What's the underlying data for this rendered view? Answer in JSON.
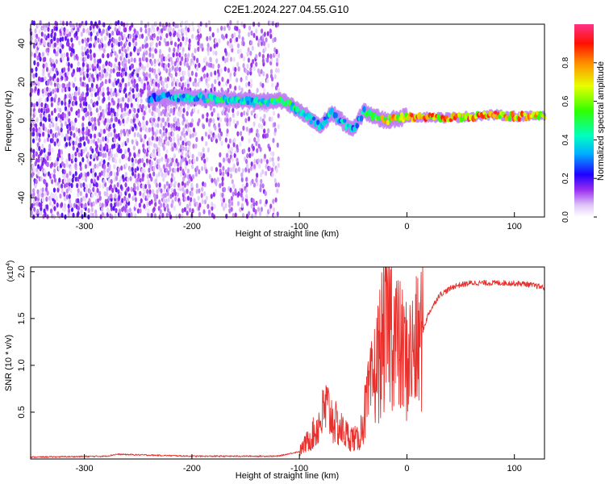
{
  "title": "C2E1.2024.227.04.55.G10",
  "chart_data": [
    {
      "type": "heatmap",
      "xlabel": "Height of straight line (km)",
      "ylabel": "Frequency (Hz)",
      "xlim": [
        -350,
        128
      ],
      "ylim": [
        -50,
        50
      ],
      "x_ticks": [
        -300,
        -200,
        -100,
        0,
        100
      ],
      "x_tick_labels": [
        "-300",
        "-200",
        "-100",
        "0",
        "100"
      ],
      "y_ticks": [
        -40,
        -20,
        0,
        20,
        40
      ],
      "y_tick_labels": [
        "-40",
        "-20",
        "0",
        "20",
        "40"
      ],
      "colorbar": {
        "label": "Normalized spectral amplitude",
        "range": [
          0,
          1
        ],
        "ticks": [
          0.0,
          0.2,
          0.4,
          0.6,
          0.8
        ],
        "tick_labels": [
          "0.0",
          "0.2",
          "0.4",
          "0.6",
          "0.8"
        ],
        "colors": [
          "#ffffff",
          "#d6b8f5",
          "#7a00e8",
          "#0000ff",
          "#00c8ff",
          "#00ffa0",
          "#00ff00",
          "#ffff00",
          "#ff8000",
          "#ff0000",
          "#ff3380"
        ]
      },
      "ridge": [
        {
          "x": -240,
          "f": 12,
          "a": 0.35
        },
        {
          "x": -200,
          "f": 12,
          "a": 0.45
        },
        {
          "x": -170,
          "f": 11,
          "a": 0.5
        },
        {
          "x": -140,
          "f": 10,
          "a": 0.45
        },
        {
          "x": -115,
          "f": 10,
          "a": 0.6
        },
        {
          "x": -100,
          "f": 5,
          "a": 0.45
        },
        {
          "x": -80,
          "f": -3,
          "a": 0.4
        },
        {
          "x": -70,
          "f": 4,
          "a": 0.45
        },
        {
          "x": -50,
          "f": -5,
          "a": 0.4
        },
        {
          "x": -40,
          "f": 5,
          "a": 0.5
        },
        {
          "x": -30,
          "f": 2,
          "a": 0.6
        },
        {
          "x": -20,
          "f": 0,
          "a": 0.8
        },
        {
          "x": 0,
          "f": 2,
          "a": 0.85
        },
        {
          "x": 40,
          "f": 1.5,
          "a": 0.9
        },
        {
          "x": 80,
          "f": 3,
          "a": 0.9
        },
        {
          "x": 110,
          "f": 2,
          "a": 0.85
        },
        {
          "x": 128,
          "f": 3,
          "a": 0.8
        }
      ],
      "noise_region_x": [
        -350,
        -120
      ]
    },
    {
      "type": "line",
      "xlabel": "Height of straight line (km)",
      "ylabel": "SNR (10 * v/v)",
      "y_multiplier": "(x10",
      "y_multiplier_exp": "4",
      "y_multiplier_close": ")",
      "xlim": [
        -350,
        128
      ],
      "ylim": [
        0,
        2.05
      ],
      "x_ticks": [
        -300,
        -200,
        -100,
        0,
        100
      ],
      "x_tick_labels": [
        "-300",
        "-200",
        "-100",
        "0",
        "100"
      ],
      "y_ticks": [
        0.5,
        1.0,
        1.5,
        2.0
      ],
      "y_tick_labels": [
        "0.5",
        "1.0",
        "1.5",
        "2.0"
      ],
      "color": "#e8302c",
      "envelope": [
        {
          "x": -350,
          "y": 0.02
        },
        {
          "x": -280,
          "y": 0.03
        },
        {
          "x": -270,
          "y": 0.05
        },
        {
          "x": -200,
          "y": 0.03
        },
        {
          "x": -120,
          "y": 0.03
        },
        {
          "x": -100,
          "y": 0.08
        },
        {
          "x": -85,
          "y": 0.3
        },
        {
          "x": -75,
          "y": 0.55
        },
        {
          "x": -65,
          "y": 0.35
        },
        {
          "x": -55,
          "y": 0.25
        },
        {
          "x": -45,
          "y": 0.2
        },
        {
          "x": -38,
          "y": 0.55
        },
        {
          "x": -30,
          "y": 0.9
        },
        {
          "x": -22,
          "y": 1.3
        },
        {
          "x": -15,
          "y": 1.5
        },
        {
          "x": -8,
          "y": 1.2
        },
        {
          "x": 0,
          "y": 1.05
        },
        {
          "x": 10,
          "y": 1.2
        },
        {
          "x": 20,
          "y": 1.55
        },
        {
          "x": 30,
          "y": 1.75
        },
        {
          "x": 45,
          "y": 1.85
        },
        {
          "x": 60,
          "y": 1.88
        },
        {
          "x": 90,
          "y": 1.88
        },
        {
          "x": 110,
          "y": 1.87
        },
        {
          "x": 128,
          "y": 1.83
        }
      ]
    }
  ]
}
